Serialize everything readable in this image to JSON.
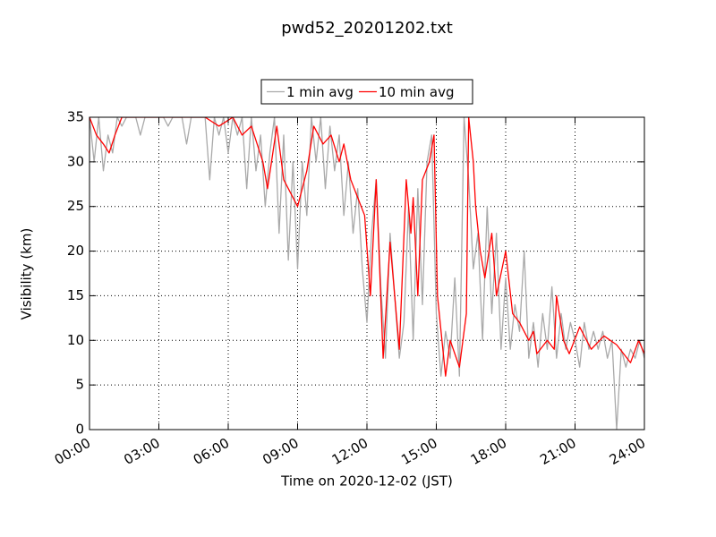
{
  "chart_data": {
    "type": "line",
    "title": "pwd52_20201202.txt",
    "x_label": "Time on 2020-12-02 (JST)",
    "y_label": "Visibility (km)",
    "xlim": [
      0,
      24
    ],
    "ylim": [
      0,
      35
    ],
    "xticks": [
      {
        "value": 0,
        "label": "00:00"
      },
      {
        "value": 3,
        "label": "03:00"
      },
      {
        "value": 6,
        "label": "06:00"
      },
      {
        "value": 9,
        "label": "09:00"
      },
      {
        "value": 12,
        "label": "12:00"
      },
      {
        "value": 15,
        "label": "15:00"
      },
      {
        "value": 18,
        "label": "18:00"
      },
      {
        "value": 21,
        "label": "21:00"
      },
      {
        "value": 24,
        "label": "24:00"
      }
    ],
    "yticks": [
      0,
      5,
      10,
      15,
      20,
      25,
      30,
      35
    ],
    "grid": true,
    "legend": "top-center",
    "series": [
      {
        "name": "1 min avg",
        "color": "#a9a9a9",
        "x": [
          0,
          0.2,
          0.4,
          0.6,
          0.8,
          1,
          1.2,
          1.4,
          1.6,
          1.8,
          2,
          2.2,
          2.4,
          2.6,
          2.8,
          3,
          3.2,
          3.4,
          3.6,
          3.8,
          4,
          4.2,
          4.4,
          4.6,
          4.8,
          5,
          5.2,
          5.4,
          5.6,
          5.8,
          6,
          6.2,
          6.4,
          6.6,
          6.8,
          7,
          7.2,
          7.4,
          7.6,
          7.8,
          8,
          8.2,
          8.4,
          8.6,
          8.8,
          9,
          9.2,
          9.4,
          9.6,
          9.8,
          10,
          10.2,
          10.4,
          10.6,
          10.8,
          11,
          11.2,
          11.4,
          11.6,
          11.8,
          12,
          12.2,
          12.4,
          12.6,
          12.8,
          13,
          13.2,
          13.4,
          13.6,
          13.8,
          14,
          14.2,
          14.4,
          14.6,
          14.8,
          15,
          15.2,
          15.4,
          15.6,
          15.8,
          16,
          16.2,
          16.4,
          16.6,
          16.8,
          17,
          17.2,
          17.4,
          17.6,
          17.8,
          18,
          18.2,
          18.4,
          18.6,
          18.8,
          19,
          19.2,
          19.4,
          19.6,
          19.8,
          20,
          20.2,
          20.4,
          20.6,
          20.8,
          21,
          21.2,
          21.4,
          21.6,
          21.8,
          22,
          22.2,
          22.4,
          22.6,
          22.8,
          23,
          23.2,
          23.4,
          23.6,
          23.8,
          24
        ],
        "values": [
          35,
          30,
          35,
          29,
          33,
          31,
          35,
          34,
          35,
          35,
          35,
          33,
          35,
          35,
          35,
          35,
          35,
          34,
          35,
          35,
          35,
          32,
          35,
          35,
          35,
          35,
          28,
          35,
          33,
          35,
          31,
          35,
          33,
          35,
          27,
          35,
          29,
          33,
          25,
          31,
          35,
          22,
          33,
          19,
          30,
          18,
          30,
          24,
          35,
          30,
          35,
          27,
          34,
          29,
          33,
          24,
          30,
          22,
          27,
          18,
          12,
          22,
          28,
          16,
          8,
          22,
          15,
          8,
          12,
          25,
          10,
          27,
          14,
          30,
          33,
          13,
          6,
          11,
          8,
          17,
          6,
          35,
          28,
          18,
          22,
          10,
          25,
          13,
          22,
          9,
          17,
          9,
          14,
          11,
          20,
          8,
          12,
          7,
          13,
          9,
          16,
          8,
          13,
          9,
          12,
          10,
          7,
          12,
          9,
          11,
          9,
          11,
          8,
          10,
          0,
          9,
          7,
          9,
          8,
          10,
          8
        ]
      },
      {
        "name": "10 min avg",
        "color": "#ff0000",
        "x": [
          0,
          0.3,
          0.6,
          0.85,
          1.1,
          1.4,
          5,
          5.6,
          6.2,
          6.6,
          7,
          7.5,
          7.7,
          8.1,
          8.4,
          9,
          9.4,
          9.7,
          10.1,
          10.45,
          10.8,
          11,
          11.3,
          11.6,
          11.9,
          12.15,
          12.4,
          12.7,
          13,
          13.4,
          13.7,
          13.9,
          14,
          14.2,
          14.4,
          14.7,
          14.9,
          15.05,
          15.4,
          15.6,
          16,
          16.3,
          16.4,
          16.6,
          16.7,
          16.9,
          17.1,
          17.4,
          17.6,
          18,
          18.3,
          18.6,
          19,
          19.2,
          19.35,
          19.8,
          20.1,
          20.2,
          20.5,
          20.75,
          21.2,
          21.7,
          22.25,
          22.8,
          23.4,
          23.75,
          24
        ],
        "values": [
          35,
          33,
          32,
          31,
          33,
          35,
          35,
          34,
          35,
          33,
          34,
          30,
          27,
          34,
          28,
          25,
          29,
          34,
          32,
          33,
          30,
          32,
          28,
          26,
          24,
          15,
          28,
          8,
          21,
          9,
          28,
          22,
          26,
          15,
          28,
          30,
          33,
          15,
          6,
          10,
          7,
          13,
          35,
          30,
          25,
          20,
          17,
          22,
          15,
          20,
          13,
          12,
          10,
          11,
          8.5,
          10,
          9,
          15,
          10,
          8.5,
          11.5,
          9,
          10.5,
          9.5,
          7.5,
          10,
          8.5
        ]
      }
    ]
  }
}
